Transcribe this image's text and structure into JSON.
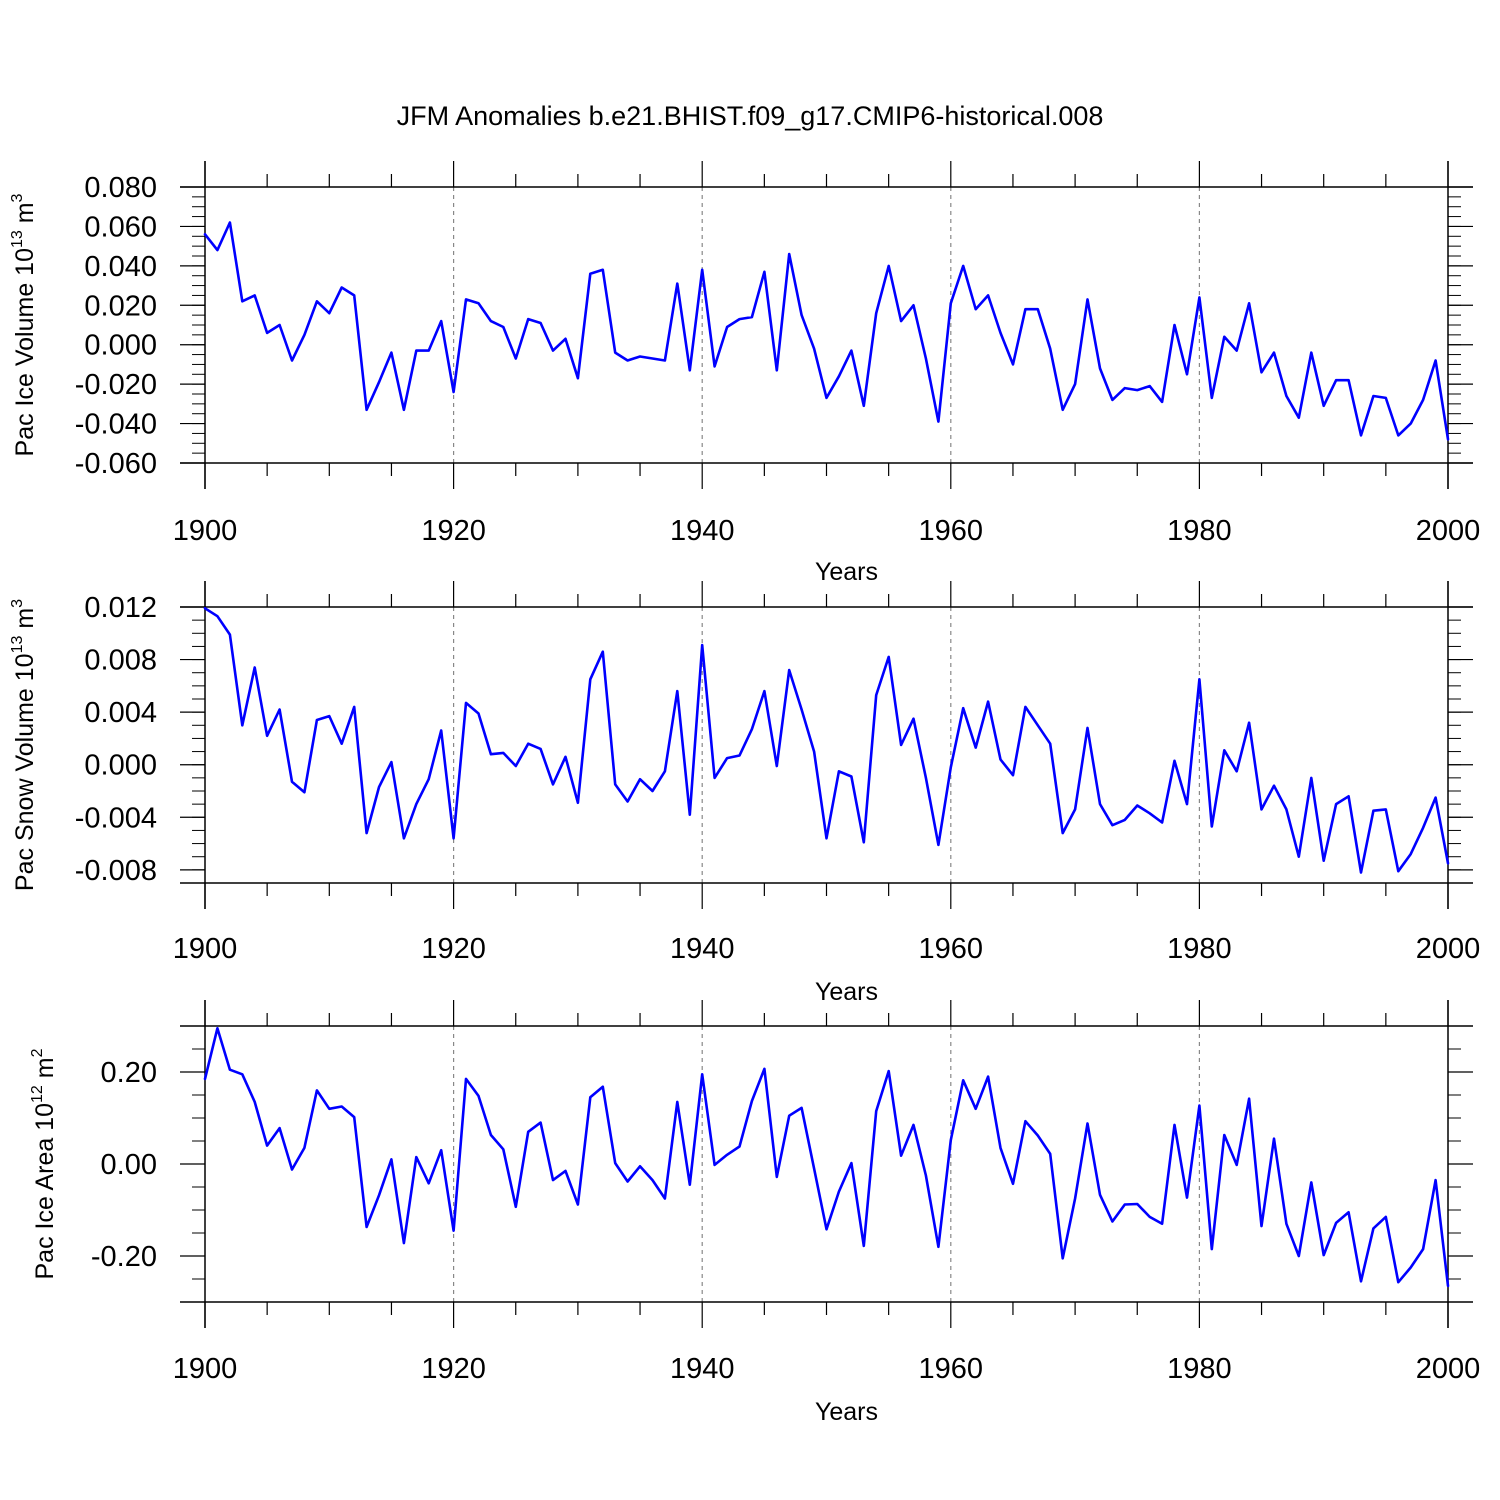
{
  "figure_title": "JFM Anomalies b.e21.BHIST.f09_g17.CMIP6-historical.008",
  "colors": {
    "line": "#0000ff",
    "axis": "#000000",
    "grid": "#888888"
  },
  "chart_data": [
    {
      "type": "line",
      "title": "JFM Anomalies b.e21.BHIST.f09_g17.CMIP6-historical.008",
      "xlabel": "Years",
      "ylabel": {
        "text": "Pac Ice Volume 10",
        "sup1": "13",
        "unit": " m",
        "sup2": "3"
      },
      "xlim": [
        1900,
        2000
      ],
      "ylim": [
        -0.06,
        0.08
      ],
      "x_ticks": [
        "1900",
        "1920",
        "1940",
        "1960",
        "1980",
        "2000"
      ],
      "y_ticks": [
        "0.080",
        "0.060",
        "0.040",
        "0.020",
        "0.000",
        "-0.020",
        "-0.040",
        "-0.060"
      ],
      "grid": "dashed vertical at major x ticks",
      "series": [
        {
          "name": "Pac Ice Volume",
          "color": "#0000ff",
          "values": [
            0.056,
            0.048,
            0.062,
            0.022,
            0.025,
            0.006,
            0.01,
            -0.008,
            0.005,
            0.022,
            0.016,
            0.029,
            0.025,
            -0.033,
            -0.019,
            -0.004,
            -0.033,
            -0.003,
            -0.003,
            0.012,
            -0.024,
            0.023,
            0.021,
            0.012,
            0.009,
            -0.007,
            0.013,
            0.011,
            -0.003,
            0.003,
            -0.017,
            0.036,
            0.038,
            -0.004,
            -0.008,
            -0.006,
            -0.007,
            -0.008,
            0.031,
            -0.013,
            0.038,
            -0.011,
            0.009,
            0.013,
            0.014,
            0.037,
            -0.013,
            0.046,
            0.015,
            -0.002,
            -0.027,
            -0.016,
            -0.003,
            -0.031,
            0.016,
            0.04,
            0.012,
            0.02,
            -0.007,
            -0.039,
            0.021,
            0.04,
            0.018,
            0.025,
            0.006,
            -0.01,
            0.018,
            0.018,
            -0.002,
            -0.033,
            -0.02,
            0.023,
            -0.012,
            -0.028,
            -0.022,
            -0.023,
            -0.021,
            -0.029,
            0.01,
            -0.015,
            0.024,
            -0.027,
            0.004,
            -0.003,
            0.021,
            -0.014,
            -0.004,
            -0.026,
            -0.037,
            -0.004,
            -0.031,
            -0.018,
            -0.018,
            -0.046,
            -0.026,
            -0.027,
            -0.046,
            -0.04,
            -0.028,
            -0.008,
            -0.048
          ]
        }
      ]
    },
    {
      "type": "line",
      "xlabel": "Years",
      "ylabel": {
        "text": "Pac Snow Volume 10",
        "sup1": "13",
        "unit": " m",
        "sup2": "3"
      },
      "xlim": [
        1900,
        2000
      ],
      "ylim": [
        -0.009,
        0.012
      ],
      "x_ticks": [
        "1900",
        "1920",
        "1940",
        "1960",
        "1980",
        "2000"
      ],
      "y_ticks": [
        "0.012",
        "0.008",
        "0.004",
        "0.000",
        "-0.004",
        "-0.008"
      ],
      "grid": "dashed vertical at major x ticks",
      "series": [
        {
          "name": "Pac Snow Volume",
          "color": "#0000ff",
          "values": [
            0.0119,
            0.0113,
            0.0099,
            0.003,
            0.0074,
            0.0022,
            0.0042,
            -0.0013,
            -0.0021,
            0.0034,
            0.0037,
            0.0016,
            0.0044,
            -0.0052,
            -0.0017,
            0.0002,
            -0.0056,
            -0.003,
            -0.0011,
            0.0026,
            -0.0056,
            0.0047,
            0.0039,
            0.0008,
            0.0009,
            -0.0001,
            0.0016,
            0.0012,
            -0.0015,
            0.0006,
            -0.0029,
            0.0065,
            0.0086,
            -0.0015,
            -0.0028,
            -0.0011,
            -0.002,
            -0.0005,
            0.0056,
            -0.0038,
            0.0091,
            -0.001,
            0.0005,
            0.0007,
            0.0027,
            0.0056,
            -0.0001,
            0.0072,
            0.0042,
            0.001,
            -0.0056,
            -0.0005,
            -0.0009,
            -0.0059,
            0.0053,
            0.0082,
            0.0015,
            0.0035,
            -0.001,
            -0.0061,
            -0.0002,
            0.0043,
            0.0013,
            0.0048,
            0.0004,
            -0.0008,
            0.0044,
            0.003,
            0.0016,
            -0.0052,
            -0.0034,
            0.0028,
            -0.003,
            -0.0046,
            -0.0042,
            -0.0031,
            -0.0037,
            -0.0044,
            0.0003,
            -0.003,
            0.0065,
            -0.0047,
            0.0011,
            -0.0005,
            0.0032,
            -0.0034,
            -0.0016,
            -0.0034,
            -0.007,
            -0.001,
            -0.0073,
            -0.003,
            -0.0024,
            -0.0082,
            -0.0035,
            -0.0034,
            -0.0081,
            -0.0068,
            -0.0048,
            -0.0025,
            -0.0075
          ]
        }
      ]
    },
    {
      "type": "line",
      "xlabel": "Years",
      "ylabel": {
        "text": "Pac Ice Area 10",
        "sup1": "12",
        "unit": " m",
        "sup2": "2"
      },
      "xlim": [
        1900,
        2000
      ],
      "ylim": [
        -0.3,
        0.3
      ],
      "x_ticks": [
        "1900",
        "1920",
        "1940",
        "1960",
        "1980",
        "2000"
      ],
      "y_ticks": [
        "0.20",
        "0.00",
        "-0.20"
      ],
      "grid": "dashed vertical at major x ticks",
      "series": [
        {
          "name": "Pac Ice Area",
          "color": "#0000ff",
          "values": [
            0.185,
            0.295,
            0.205,
            0.195,
            0.135,
            0.04,
            0.078,
            -0.012,
            0.035,
            0.16,
            0.12,
            0.125,
            0.102,
            -0.137,
            -0.068,
            0.01,
            -0.172,
            0.015,
            -0.042,
            0.03,
            -0.145,
            0.185,
            0.148,
            0.063,
            0.032,
            -0.093,
            0.07,
            0.09,
            -0.035,
            -0.015,
            -0.088,
            0.145,
            0.168,
            0.002,
            -0.038,
            -0.005,
            -0.035,
            -0.075,
            0.135,
            -0.045,
            0.195,
            -0.002,
            0.02,
            0.038,
            0.137,
            0.207,
            -0.028,
            0.105,
            0.122,
            -0.01,
            -0.142,
            -0.06,
            0.002,
            -0.178,
            0.115,
            0.202,
            0.018,
            0.085,
            -0.025,
            -0.18,
            0.052,
            0.182,
            0.12,
            0.19,
            0.035,
            -0.043,
            0.093,
            0.062,
            0.022,
            -0.205,
            -0.075,
            0.088,
            -0.067,
            -0.125,
            -0.088,
            -0.087,
            -0.115,
            -0.13,
            0.085,
            -0.073,
            0.127,
            -0.185,
            0.063,
            -0.002,
            0.142,
            -0.135,
            0.055,
            -0.13,
            -0.2,
            -0.04,
            -0.198,
            -0.128,
            -0.105,
            -0.255,
            -0.14,
            -0.115,
            -0.257,
            -0.225,
            -0.185,
            -0.035,
            -0.265
          ]
        }
      ]
    }
  ]
}
